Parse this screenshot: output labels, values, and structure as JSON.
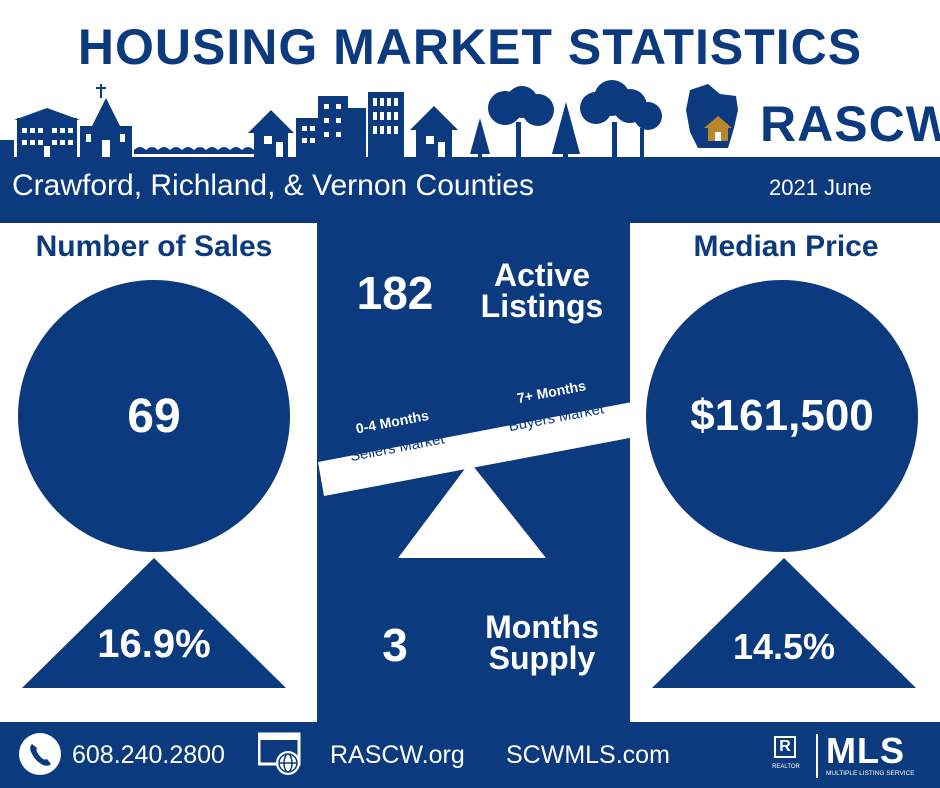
{
  "header": {
    "title": "HOUSING MARKET STATISTICS",
    "brand": "RASCW"
  },
  "region_bar": {
    "region": "Crawford, Richland, & Vernon Counties",
    "period": "2021 June"
  },
  "sales": {
    "label": "Number of Sales",
    "value": "69",
    "change": "16.9%"
  },
  "median_price": {
    "label": "Median Price",
    "value": "$161,500",
    "change": "14.5%"
  },
  "active_listings": {
    "value": "182",
    "label_line1": "Active",
    "label_line2": "Listings"
  },
  "months_supply": {
    "value": "3",
    "label_line1": "Months",
    "label_line2": "Supply"
  },
  "market_scale": {
    "left_title": "0-4 Months",
    "left_sub": "Sellers Market",
    "right_title": "7+ Months",
    "right_sub": "Buyers Market"
  },
  "footer": {
    "phone": "608.240.2800",
    "site1": "RASCW.org",
    "site2": "SCWMLS.com",
    "mls_logo": "MLS",
    "mls_tagline": "MULTIPLE LISTING SERVICE",
    "realtor_tagline": "REALTOR"
  },
  "colors": {
    "navy": "#0b3a7e",
    "white": "#ffffff",
    "house_gold": "#b8862b"
  },
  "icons": [
    "phone-icon",
    "web-globe-icon",
    "realtor-r-icon",
    "wisconsin-map-icon",
    "skyline-illustration"
  ]
}
